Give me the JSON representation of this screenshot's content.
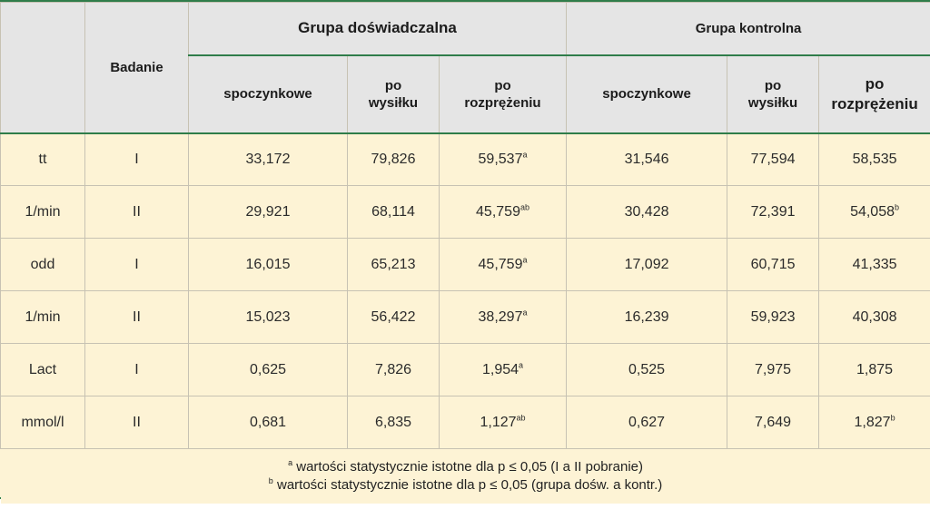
{
  "header": {
    "badanie": "Badanie",
    "group1": "Grupa doświadczalna",
    "group2": "Grupa kontrolna",
    "cols": {
      "spoczynkowe": "spoczynkowe",
      "po": "po",
      "wysilku": "wysiłku",
      "rozprezeniu": "rozprężeniu"
    }
  },
  "rows": [
    {
      "label": "tt",
      "badanie": "I",
      "g1_spocz": "33,172",
      "g1_wys": "79,826",
      "g1_roz": "59,537",
      "g1_roz_sup": "a",
      "g2_spocz": "31,546",
      "g2_wys": "77,594",
      "g2_roz": "58,535",
      "g2_roz_sup": ""
    },
    {
      "label": "1/min",
      "badanie": "II",
      "g1_spocz": "29,921",
      "g1_wys": "68,114",
      "g1_roz": "45,759",
      "g1_roz_sup": "ab",
      "g2_spocz": "30,428",
      "g2_wys": "72,391",
      "g2_roz": "54,058",
      "g2_roz_sup": "b"
    },
    {
      "label": "odd",
      "badanie": "I",
      "g1_spocz": "16,015",
      "g1_wys": "65,213",
      "g1_roz": "45,759",
      "g1_roz_sup": "a",
      "g2_spocz": "17,092",
      "g2_wys": "60,715",
      "g2_roz": "41,335",
      "g2_roz_sup": ""
    },
    {
      "label": "1/min",
      "badanie": "II",
      "g1_spocz": "15,023",
      "g1_wys": "56,422",
      "g1_roz": "38,297",
      "g1_roz_sup": "a",
      "g2_spocz": "16,239",
      "g2_wys": "59,923",
      "g2_roz": "40,308",
      "g2_roz_sup": ""
    },
    {
      "label": "Lact",
      "badanie": "I",
      "g1_spocz": "0,625",
      "g1_wys": "7,826",
      "g1_roz": "1,954",
      "g1_roz_sup": "a",
      "g2_spocz": "0,525",
      "g2_wys": "7,975",
      "g2_roz": "1,875",
      "g2_roz_sup": ""
    },
    {
      "label": "mmol/l",
      "badanie": "II",
      "g1_spocz": "0,681",
      "g1_wys": "6,835",
      "g1_roz": "1,127",
      "g1_roz_sup": "ab",
      "g2_spocz": "0,627",
      "g2_wys": "7,649",
      "g2_roz": "1,827",
      "g2_roz_sup": "b"
    }
  ],
  "footnotes": {
    "a_mark": "a",
    "a_text": "wartości statystycznie istotne dla p ≤ 0,05 (I a II pobranie)",
    "b_mark": "b",
    "b_text": "wartości statystycznie istotne dla p ≤ 0,05 (grupa dośw. a kontr.)"
  },
  "colors": {
    "accent_border": "#2f7d4a",
    "header_bg": "#e5e5e5",
    "body_bg": "#fdf3d5"
  }
}
